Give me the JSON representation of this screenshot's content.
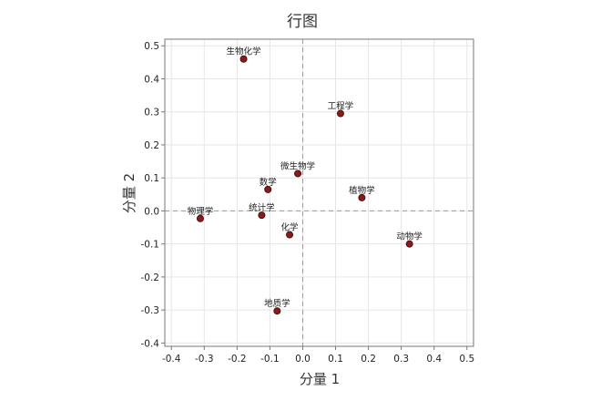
{
  "chart_data": {
    "type": "scatter",
    "title": "行图",
    "xlabel": "分量 1",
    "ylabel": "分量 2",
    "xlim": [
      -0.42,
      0.52
    ],
    "ylim": [
      -0.41,
      0.52
    ],
    "xticks": [
      -0.4,
      -0.3,
      -0.2,
      -0.1,
      0.0,
      0.1,
      0.2,
      0.3,
      0.4,
      0.5
    ],
    "yticks": [
      -0.4,
      -0.3,
      -0.2,
      -0.1,
      0.0,
      0.1,
      0.2,
      0.3,
      0.4,
      0.5
    ],
    "xtick_labels": [
      "-0.4",
      "-0.3",
      "-0.2",
      "-0.1",
      "0.0",
      "0.1",
      "0.2",
      "0.3",
      "0.4",
      "0.5"
    ],
    "ytick_labels": [
      "-0.4",
      "-0.3",
      "-0.2",
      "-0.1",
      "0.0",
      "0.1",
      "0.2",
      "0.3",
      "0.4",
      "0.5"
    ],
    "grid": true,
    "reference_lines": {
      "x": 0,
      "y": 0
    },
    "marker_color": "#8b1a1a",
    "points": [
      {
        "label": "生物化学",
        "x": -0.18,
        "y": 0.46
      },
      {
        "label": "工程学",
        "x": 0.115,
        "y": 0.295
      },
      {
        "label": "微生物学",
        "x": -0.015,
        "y": 0.113
      },
      {
        "label": "数学",
        "x": -0.106,
        "y": 0.065
      },
      {
        "label": "植物学",
        "x": 0.18,
        "y": 0.04
      },
      {
        "label": "统计学",
        "x": -0.125,
        "y": -0.013
      },
      {
        "label": "物理学",
        "x": -0.312,
        "y": -0.023
      },
      {
        "label": "化学",
        "x": -0.04,
        "y": -0.072
      },
      {
        "label": "动物学",
        "x": 0.325,
        "y": -0.1
      },
      {
        "label": "地质学",
        "x": -0.078,
        "y": -0.303
      }
    ]
  }
}
